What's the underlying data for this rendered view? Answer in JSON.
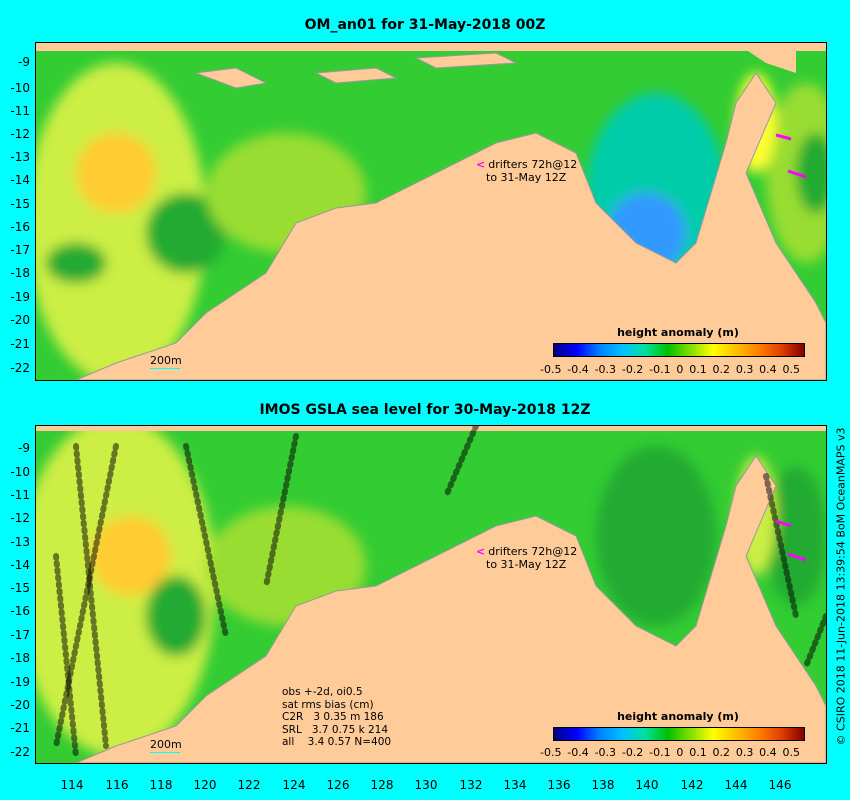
{
  "panels": [
    {
      "title": "OM_an01 for 31-May-2018 00Z",
      "scale_label": "200m"
    },
    {
      "title": "IMOS GSLA sea level  for 30-May-2018 12Z",
      "scale_label": "200m"
    }
  ],
  "legend": {
    "title": "height anomaly (m)",
    "ticks": [
      "-0.5",
      "-0.4",
      "-0.3",
      "-0.2",
      "-0.1",
      "0",
      "0.1",
      "0.2",
      "0.3",
      "0.4",
      "0.5"
    ]
  },
  "drifters_note": {
    "line1": "drifters 72h@12",
    "line2": "to 31-May 12Z"
  },
  "y_ticks": [
    "-9",
    "-10",
    "-11",
    "-12",
    "-13",
    "-14",
    "-15",
    "-16",
    "-17",
    "-18",
    "-19",
    "-20",
    "-21",
    "-22"
  ],
  "x_ticks": [
    "114",
    "116",
    "118",
    "120",
    "122",
    "124",
    "126",
    "128",
    "130",
    "132",
    "134",
    "136",
    "138",
    "140",
    "142",
    "144",
    "146"
  ],
  "stats": {
    "line1": "obs +-2d, oi0.5",
    "line2": "sat rms bias (cm)",
    "rows": [
      {
        "sat": "C2R",
        "values": "3 0.35 m 186"
      },
      {
        "sat": "SRL",
        "values": "3.7 0.75 k 214"
      },
      {
        "sat": "all",
        "values": "3.4 0.57 N=400"
      }
    ]
  },
  "credit": "© CSIRO 2018  11-Jun-2018 13:39:54 BoM OceanMAPS v3",
  "colors": {
    "land": "#ffcc99",
    "frame": "#00ffff",
    "magenta": "#ff00ff"
  }
}
